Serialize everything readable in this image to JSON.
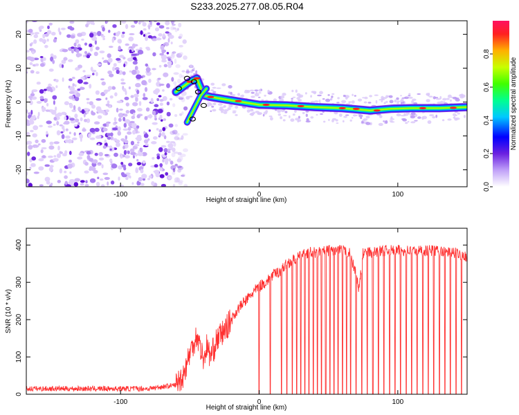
{
  "page_title": "S233.2025.277.08.05.R04",
  "colors": {
    "snr_line": "#ff3030",
    "spectrogram_ridge": "#ff2020",
    "axis": "#000000"
  },
  "chart_data": [
    {
      "type": "heatmap",
      "title": "S233.2025.277.08.05.R04",
      "xlabel": "Height of straight line (km)",
      "ylabel": "Frequency (Hz)",
      "xlim": [
        -168,
        150
      ],
      "ylim": [
        -25,
        24
      ],
      "xticks": [
        "-100",
        "0",
        "100"
      ],
      "xtick_values": [
        -100,
        0,
        100
      ],
      "yticks": [
        "20",
        "10",
        "0",
        "-10",
        "-20"
      ],
      "ytick_values": [
        20,
        10,
        0,
        -10,
        -20
      ],
      "colorbar": {
        "label": "Normalized spectral amplitude",
        "ticks": [
          "0.0",
          "0.2",
          "0.4",
          "0.6",
          "0.8"
        ],
        "tick_values": [
          0.0,
          0.2,
          0.4,
          0.6,
          0.8
        ],
        "range": [
          0,
          1
        ]
      },
      "noise_region_x": [
        -168,
        -58
      ],
      "ridge": [
        {
          "x": -60,
          "y": 3
        },
        {
          "x": -50,
          "y": 6
        },
        {
          "x": -45,
          "y": 7
        },
        {
          "x": -40,
          "y": 2
        },
        {
          "x": -35,
          "y": 1.5
        },
        {
          "x": -20,
          "y": 0.5
        },
        {
          "x": 0,
          "y": -0.8
        },
        {
          "x": 20,
          "y": -1
        },
        {
          "x": 40,
          "y": -1.5
        },
        {
          "x": 60,
          "y": -1.8
        },
        {
          "x": 80,
          "y": -2.5
        },
        {
          "x": 95,
          "y": -2
        },
        {
          "x": 110,
          "y": -1.8
        },
        {
          "x": 130,
          "y": -1.8
        },
        {
          "x": 150,
          "y": -1.5
        }
      ],
      "ridge_branch": [
        {
          "x": -52,
          "y": -6
        },
        {
          "x": -47,
          "y": -2
        },
        {
          "x": -42,
          "y": 2
        },
        {
          "x": -38,
          "y": 4
        }
      ]
    },
    {
      "type": "line",
      "xlabel": "Height of straight line (km)",
      "ylabel": "SNR (10 * v/v)",
      "xlim": [
        -168,
        150
      ],
      "ylim": [
        0,
        445
      ],
      "xticks": [
        "-100",
        "0",
        "100"
      ],
      "xtick_values": [
        -100,
        0,
        100
      ],
      "yticks": [
        "0",
        "100",
        "200",
        "300",
        "400"
      ],
      "ytick_values": [
        0,
        100,
        200,
        300,
        400
      ],
      "series": [
        {
          "name": "SNR",
          "x": [
            -168,
            -140,
            -110,
            -80,
            -60,
            -55,
            -50,
            -45,
            -42,
            -40,
            -38,
            -35,
            -30,
            -25,
            -20,
            -15,
            -10,
            -5,
            0,
            5,
            10,
            15,
            20,
            25,
            30,
            35,
            40,
            50,
            60,
            65,
            70,
            72,
            75,
            80,
            90,
            100,
            110,
            120,
            130,
            140,
            150
          ],
          "values": [
            15,
            15,
            15,
            15,
            25,
            50,
            110,
            160,
            120,
            90,
            130,
            100,
            150,
            170,
            200,
            230,
            250,
            270,
            290,
            300,
            320,
            330,
            350,
            360,
            370,
            380,
            380,
            385,
            385,
            380,
            320,
            280,
            380,
            380,
            385,
            385,
            385,
            385,
            385,
            380,
            370
          ]
        }
      ],
      "dropout_x": [
        0,
        8,
        16,
        20,
        24,
        27,
        30,
        33,
        36,
        39,
        42,
        45,
        48,
        51,
        54,
        57,
        60,
        63,
        66,
        70,
        74,
        78,
        82,
        86,
        90,
        94,
        98,
        102,
        106,
        110,
        114,
        118,
        122,
        126,
        130,
        134,
        138,
        142,
        146
      ]
    }
  ]
}
